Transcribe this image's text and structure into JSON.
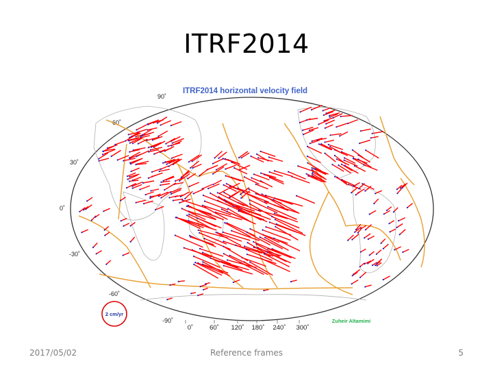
{
  "slide": {
    "title": "ITRF2014",
    "footer_date": "2017/05/02",
    "footer_center": "Reference frames",
    "page_number": "5"
  },
  "map": {
    "title": "ITRF2014 horizontal velocity field",
    "latitude_labels": [
      "90˚",
      "60˚",
      "30˚",
      "0˚",
      "-30˚",
      "-60˚",
      "-90˚"
    ],
    "longitude_labels": [
      "0˚",
      "60˚",
      "120˚",
      "180˚",
      "240˚",
      "300˚"
    ],
    "scale_label": "2 cm/yr",
    "author": "Zuheir Altamimi",
    "projection": "elliptical world map centered on the Pacific",
    "colors": {
      "title": "#3f63c8",
      "plate_boundaries": "#e8a33a",
      "coastlines": "#b0b0b0",
      "vectors": "#ff0000",
      "stations": "#2020c0",
      "author": "#22b14c",
      "scale_circle": "#dd0000"
    }
  }
}
